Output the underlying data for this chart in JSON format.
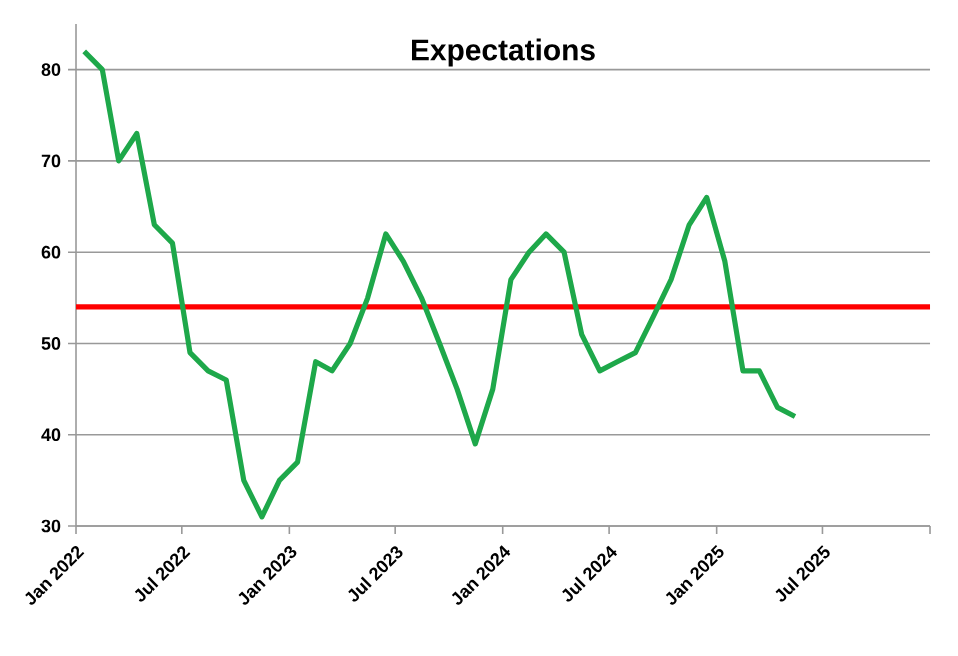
{
  "chart_data": {
    "type": "line",
    "title": "Expectations",
    "x": [
      "2022-01-15",
      "2022-02-15",
      "2022-03-15",
      "2022-04-15",
      "2022-05-15",
      "2022-06-15",
      "2022-07-15",
      "2022-08-15",
      "2022-09-15",
      "2022-10-15",
      "2022-11-15",
      "2022-12-15",
      "2023-01-15",
      "2023-02-15",
      "2023-03-15",
      "2023-04-15",
      "2023-05-15",
      "2023-06-15",
      "2023-07-15",
      "2023-08-15",
      "2023-09-15",
      "2023-10-15",
      "2023-11-15",
      "2023-12-15",
      "2024-01-15",
      "2024-02-15",
      "2024-03-15",
      "2024-04-15",
      "2024-05-15",
      "2024-06-15",
      "2024-07-15",
      "2024-08-15",
      "2024-09-15",
      "2024-10-15",
      "2024-11-15",
      "2024-12-15",
      "2025-01-15",
      "2025-02-15",
      "2025-03-15",
      "2025-04-15",
      "2025-05-15"
    ],
    "series": [
      {
        "color": "#1ea84a",
        "values": [
          82,
          80,
          70,
          73,
          63,
          61,
          49,
          47,
          46,
          35,
          31,
          35,
          37,
          48,
          47,
          50,
          55,
          62,
          59,
          55,
          50,
          45,
          39,
          45,
          57,
          60,
          62,
          60,
          51,
          47,
          48,
          49,
          53,
          57,
          63,
          66,
          59,
          47,
          47,
          43,
          42
        ]
      }
    ],
    "xlim": [
      "2022-01",
      "2026-01"
    ],
    "xticks": [
      {
        "value": "2022-01",
        "label": "Jan 2022"
      },
      {
        "value": "2022-07",
        "label": "Jul 2022"
      },
      {
        "value": "2023-01",
        "label": "Jan 2023"
      },
      {
        "value": "2023-07",
        "label": "Jul 2023"
      },
      {
        "value": "2024-01",
        "label": "Jan 2024"
      },
      {
        "value": "2024-07",
        "label": "Jul 2024"
      },
      {
        "value": "2025-01",
        "label": "Jan 2025"
      },
      {
        "value": "2025-07",
        "label": "Jul 2025"
      },
      {
        "value": "2026-01",
        "label": null
      }
    ],
    "ylim": [
      30,
      85
    ],
    "yticks": [
      30,
      40,
      50,
      60,
      70,
      80
    ],
    "ref_lines": [
      {
        "axis": "y",
        "value": 54,
        "color": "#ff0000"
      }
    ],
    "grid": "y",
    "marker": "none",
    "line_style": "solid"
  }
}
